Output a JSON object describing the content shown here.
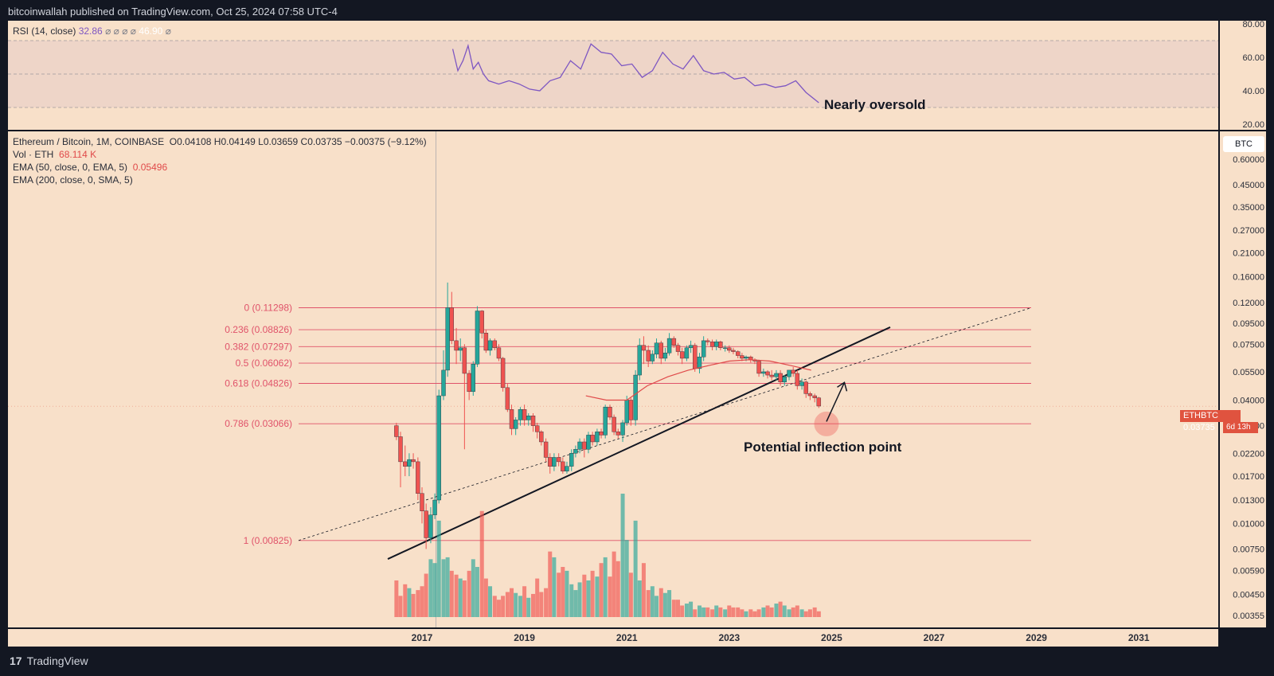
{
  "header": {
    "publisher_text": "bitcoinwallah published on TradingView.com, Oct 25, 2024 07:58 UTC-4"
  },
  "footer": {
    "logo_mark": "17",
    "logo_text": "TradingView"
  },
  "rsi": {
    "label": "RSI (14, close)",
    "value": "32.86",
    "value2": "46.90",
    "symbols": "⌀ ⌀ ⌀ ⌀",
    "symbol_after": "⌀",
    "annotation": "Nearly oversold",
    "y_ticks": [
      "80.00",
      "60.00",
      "40.00",
      "20.00"
    ],
    "line_color": "#7e57c2"
  },
  "legend": {
    "symbol_line": "Ethereum / Bitcoin, 1M, COINBASE",
    "ohlc": "O0.04108 H0.04149 L0.03659 C0.03735 −0.00375 (−9.12%)",
    "vol_label": "Vol · ETH",
    "vol_value": "68.114 K",
    "ema50_label": "EMA (50, close, 0, EMA, 5)",
    "ema50_value": "0.05496",
    "ema200_label": "EMA (200, close, 0, SMA, 5)"
  },
  "price_axis": {
    "currency": "BTC",
    "ticks": [
      "0.60000",
      "0.45000",
      "0.35000",
      "0.27000",
      "0.21000",
      "0.16000",
      "0.12000",
      "0.09500",
      "0.07500",
      "0.05500",
      "0.04000",
      "0.03000",
      "0.02200",
      "0.01700",
      "0.01300",
      "0.01000",
      "0.00750",
      "0.00590",
      "0.00450",
      "0.00355"
    ],
    "last_symbol": "ETHBTC",
    "last_price": "0.03735",
    "countdown": "6d 13h"
  },
  "time_axis": {
    "ticks": [
      "2017",
      "2019",
      "2021",
      "2023",
      "2025",
      "2027",
      "2029",
      "2031"
    ]
  },
  "fib_levels": [
    {
      "label": "0 (0.11298)"
    },
    {
      "label": "0.236 (0.08826)"
    },
    {
      "label": "0.382 (0.07297)"
    },
    {
      "label": "0.5 (0.06062)"
    },
    {
      "label": "0.618 (0.04826)"
    },
    {
      "label": "0.786 (0.03066)"
    },
    {
      "label": "1 (0.00825)"
    }
  ],
  "annotations": {
    "inflection": "Potential inflection point"
  },
  "colors": {
    "up": "#26a69a",
    "down": "#ef5350",
    "fib": "#e0536a",
    "background": "#f8e0c9",
    "frame": "#131722"
  },
  "chart_data": {
    "type": "line",
    "title": "Ethereum / Bitcoin, 1M, COINBASE",
    "scale": "log",
    "ylim": [
      0.00355,
      0.6
    ],
    "x_range": [
      "2016",
      "2031"
    ],
    "candles": {
      "x": [
        2016.5,
        2016.58,
        2016.67,
        2016.75,
        2016.83,
        2016.92,
        2017.0,
        2017.08,
        2017.17,
        2017.25,
        2017.33,
        2017.42,
        2017.5,
        2017.58,
        2017.67,
        2017.75,
        2017.83,
        2017.92,
        2018.0,
        2018.08,
        2018.17,
        2018.25,
        2018.33,
        2018.42,
        2018.5,
        2018.58,
        2018.67,
        2018.75,
        2018.83,
        2018.92,
        2019.0,
        2019.08,
        2019.17,
        2019.25,
        2019.33,
        2019.42,
        2019.5,
        2019.58,
        2019.67,
        2019.75,
        2019.83,
        2019.92,
        2020.0,
        2020.08,
        2020.17,
        2020.25,
        2020.33,
        2020.42,
        2020.5,
        2020.58,
        2020.67,
        2020.75,
        2020.83,
        2020.92,
        2021.0,
        2021.08,
        2021.17,
        2021.25,
        2021.33,
        2021.42,
        2021.5,
        2021.58,
        2021.67,
        2021.75,
        2021.83,
        2021.92,
        2022.0,
        2022.08,
        2022.17,
        2022.25,
        2022.33,
        2022.42,
        2022.5,
        2022.58,
        2022.67,
        2022.75,
        2022.83,
        2022.92,
        2023.0,
        2023.08,
        2023.17,
        2023.25,
        2023.33,
        2023.42,
        2023.5,
        2023.58,
        2023.67,
        2023.75,
        2023.83,
        2023.92,
        2024.0,
        2024.08,
        2024.17,
        2024.25,
        2024.33,
        2024.42,
        2024.5,
        2024.58,
        2024.67,
        2024.75
      ],
      "open": [
        0.03,
        0.0265,
        0.02,
        0.019,
        0.0205,
        0.02,
        0.014,
        0.0115,
        0.0085,
        0.011,
        0.013,
        0.042,
        0.056,
        0.113,
        0.078,
        0.07,
        0.072,
        0.054,
        0.044,
        0.06,
        0.109,
        0.085,
        0.07,
        0.078,
        0.072,
        0.064,
        0.046,
        0.036,
        0.029,
        0.032,
        0.036,
        0.032,
        0.0335,
        0.03,
        0.028,
        0.025,
        0.021,
        0.019,
        0.021,
        0.02,
        0.018,
        0.019,
        0.022,
        0.023,
        0.025,
        0.023,
        0.027,
        0.025,
        0.028,
        0.027,
        0.037,
        0.033,
        0.028,
        0.027,
        0.031,
        0.04,
        0.032,
        0.053,
        0.074,
        0.07,
        0.062,
        0.067,
        0.076,
        0.064,
        0.068,
        0.08,
        0.074,
        0.069,
        0.064,
        0.072,
        0.074,
        0.057,
        0.065,
        0.078,
        0.077,
        0.073,
        0.077,
        0.072,
        0.072,
        0.07,
        0.069,
        0.066,
        0.064,
        0.065,
        0.063,
        0.062,
        0.054,
        0.055,
        0.053,
        0.052,
        0.054,
        0.049,
        0.052,
        0.056,
        0.054,
        0.047,
        0.049,
        0.043,
        0.042,
        0.041
      ],
      "close": [
        0.0265,
        0.02,
        0.019,
        0.0205,
        0.02,
        0.014,
        0.0115,
        0.0085,
        0.011,
        0.013,
        0.042,
        0.056,
        0.113,
        0.078,
        0.07,
        0.072,
        0.054,
        0.044,
        0.06,
        0.109,
        0.085,
        0.07,
        0.078,
        0.072,
        0.064,
        0.046,
        0.036,
        0.029,
        0.032,
        0.036,
        0.032,
        0.0335,
        0.03,
        0.028,
        0.025,
        0.021,
        0.019,
        0.021,
        0.02,
        0.018,
        0.019,
        0.022,
        0.023,
        0.025,
        0.023,
        0.027,
        0.025,
        0.028,
        0.027,
        0.037,
        0.033,
        0.028,
        0.027,
        0.031,
        0.04,
        0.032,
        0.053,
        0.074,
        0.07,
        0.062,
        0.067,
        0.076,
        0.064,
        0.068,
        0.08,
        0.074,
        0.069,
        0.064,
        0.072,
        0.074,
        0.057,
        0.065,
        0.078,
        0.077,
        0.073,
        0.077,
        0.072,
        0.072,
        0.07,
        0.069,
        0.066,
        0.064,
        0.065,
        0.063,
        0.062,
        0.054,
        0.055,
        0.053,
        0.052,
        0.054,
        0.049,
        0.052,
        0.056,
        0.054,
        0.047,
        0.049,
        0.043,
        0.042,
        0.041,
        0.0374
      ],
      "high": [
        0.031,
        0.028,
        0.024,
        0.022,
        0.022,
        0.021,
        0.015,
        0.0125,
        0.012,
        0.014,
        0.045,
        0.07,
        0.15,
        0.135,
        0.09,
        0.08,
        0.075,
        0.056,
        0.062,
        0.115,
        0.11,
        0.088,
        0.08,
        0.08,
        0.075,
        0.065,
        0.048,
        0.038,
        0.033,
        0.037,
        0.038,
        0.0345,
        0.0345,
        0.031,
        0.0285,
        0.026,
        0.022,
        0.022,
        0.022,
        0.021,
        0.02,
        0.023,
        0.024,
        0.026,
        0.026,
        0.028,
        0.028,
        0.029,
        0.029,
        0.038,
        0.038,
        0.034,
        0.029,
        0.032,
        0.042,
        0.041,
        0.056,
        0.08,
        0.082,
        0.074,
        0.07,
        0.08,
        0.078,
        0.072,
        0.085,
        0.082,
        0.076,
        0.072,
        0.074,
        0.078,
        0.076,
        0.068,
        0.082,
        0.08,
        0.079,
        0.079,
        0.078,
        0.074,
        0.074,
        0.072,
        0.07,
        0.068,
        0.066,
        0.066,
        0.064,
        0.063,
        0.057,
        0.056,
        0.056,
        0.056,
        0.056,
        0.053,
        0.056,
        0.058,
        0.056,
        0.051,
        0.05,
        0.044,
        0.043,
        0.0415
      ],
      "low": [
        0.0255,
        0.015,
        0.017,
        0.017,
        0.0185,
        0.013,
        0.01,
        0.0075,
        0.008,
        0.0105,
        0.0125,
        0.04,
        0.052,
        0.075,
        0.06,
        0.062,
        0.023,
        0.04,
        0.042,
        0.058,
        0.08,
        0.068,
        0.066,
        0.07,
        0.062,
        0.044,
        0.035,
        0.027,
        0.027,
        0.03,
        0.03,
        0.03,
        0.028,
        0.026,
        0.024,
        0.02,
        0.0175,
        0.018,
        0.019,
        0.0175,
        0.0175,
        0.018,
        0.021,
        0.022,
        0.021,
        0.022,
        0.024,
        0.024,
        0.026,
        0.026,
        0.032,
        0.027,
        0.026,
        0.025,
        0.03,
        0.03,
        0.03,
        0.05,
        0.06,
        0.058,
        0.06,
        0.064,
        0.06,
        0.062,
        0.066,
        0.072,
        0.066,
        0.06,
        0.062,
        0.068,
        0.055,
        0.054,
        0.062,
        0.074,
        0.07,
        0.07,
        0.07,
        0.069,
        0.068,
        0.067,
        0.064,
        0.062,
        0.062,
        0.061,
        0.06,
        0.052,
        0.052,
        0.051,
        0.05,
        0.05,
        0.047,
        0.047,
        0.05,
        0.052,
        0.045,
        0.045,
        0.041,
        0.04,
        0.039,
        0.0366
      ]
    },
    "volume": [
      38,
      22,
      34,
      30,
      24,
      28,
      32,
      45,
      60,
      56,
      100,
      60,
      62,
      48,
      44,
      40,
      38,
      48,
      60,
      52,
      110,
      40,
      32,
      22,
      18,
      22,
      26,
      30,
      25,
      22,
      32,
      20,
      24,
      40,
      26,
      30,
      68,
      62,
      46,
      52,
      48,
      34,
      28,
      36,
      44,
      38,
      48,
      42,
      56,
      62,
      42,
      68,
      58,
      128,
      80,
      46,
      100,
      38,
      56,
      28,
      32,
      22,
      30,
      25,
      28,
      18,
      18,
      12,
      14,
      16,
      8,
      12,
      10,
      10,
      8,
      12,
      10,
      8,
      12,
      10,
      10,
      8,
      6,
      8,
      6,
      8,
      10,
      12,
      10,
      14,
      16,
      12,
      8,
      10,
      12,
      8,
      6,
      8,
      10,
      6
    ],
    "rsi": {
      "x": [
        2017.6,
        2017.7,
        2017.8,
        2017.9,
        2018.0,
        2018.1,
        2018.2,
        2018.3,
        2018.5,
        2018.7,
        2018.9,
        2019.1,
        2019.3,
        2019.5,
        2019.7,
        2019.9,
        2020.1,
        2020.3,
        2020.5,
        2020.7,
        2020.9,
        2021.1,
        2021.3,
        2021.5,
        2021.7,
        2021.9,
        2022.1,
        2022.3,
        2022.5,
        2022.7,
        2022.9,
        2023.1,
        2023.3,
        2023.5,
        2023.7,
        2023.9,
        2024.1,
        2024.3,
        2024.5,
        2024.75
      ],
      "values": [
        65,
        52,
        58,
        67,
        53,
        57,
        50,
        46,
        44,
        46,
        44,
        41,
        40,
        46,
        48,
        58,
        53,
        68,
        63,
        62,
        55,
        56,
        48,
        52,
        63,
        56,
        53,
        61,
        52,
        50,
        51,
        47,
        48,
        43,
        44,
        42,
        43,
        46,
        39,
        32.86
      ]
    }
  }
}
